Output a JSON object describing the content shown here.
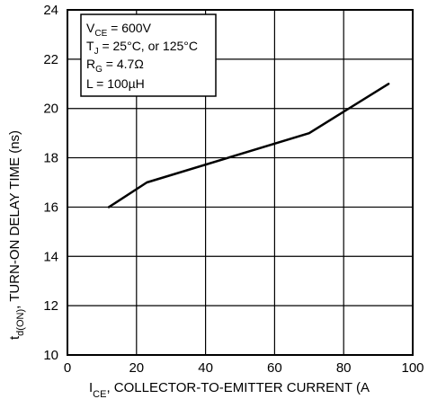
{
  "chart_data": {
    "type": "line",
    "title": "",
    "xlabel": {
      "main": "I",
      "sub": "CE",
      "rest": ", COLLECTOR-TO-EMITTER CURRENT (A"
    },
    "ylabel": {
      "main": "t",
      "sub": "d(ON)",
      "rest": ", TURN-ON DELAY TIME (ns)"
    },
    "xlim": [
      0,
      100
    ],
    "ylim": [
      10,
      24
    ],
    "x_ticks": [
      0,
      20,
      40,
      60,
      80,
      100
    ],
    "y_ticks": [
      10,
      12,
      14,
      16,
      18,
      20,
      22,
      24
    ],
    "x_tick_labels": [
      "0",
      "20",
      "40",
      "60",
      "80",
      "100"
    ],
    "y_tick_labels": [
      "10",
      "12",
      "14",
      "16",
      "18",
      "20",
      "22",
      "24"
    ],
    "grid": true,
    "legend_placement": "top-left",
    "series": [
      {
        "x": [
          12,
          23,
          70,
          93
        ],
        "y": [
          16,
          17,
          19,
          21
        ]
      }
    ],
    "annotations": [
      {
        "main": "V",
        "sub": "CE",
        "rest": " = 600V"
      },
      {
        "main": "T",
        "sub": "J",
        "rest": " = 25°C, or 125°C"
      },
      {
        "main": "R",
        "sub": "G",
        "rest": " = 4.7Ω"
      },
      {
        "main": "L = 100µH",
        "sub": "",
        "rest": ""
      }
    ]
  }
}
